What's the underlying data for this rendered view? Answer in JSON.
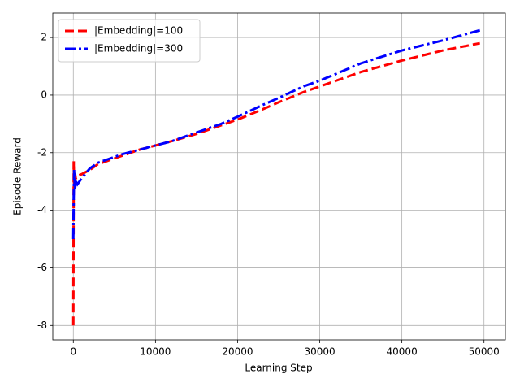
{
  "chart_data": {
    "type": "line",
    "x_label": "Learning Step",
    "y_label": "Episode Reward",
    "x": [
      0,
      50,
      100,
      200,
      300,
      500,
      1000,
      2000,
      3000,
      4000,
      6000,
      8000,
      10000,
      12000,
      15000,
      18000,
      20000,
      23000,
      25000,
      28000,
      30000,
      35000,
      40000,
      45000,
      49500
    ],
    "series": [
      {
        "name": "|Embedding|=100",
        "color": "#ff0000",
        "linestyle": "dashed",
        "values": [
          -8,
          -2.3,
          -3.3,
          -2.7,
          -2.9,
          -2.8,
          -2.75,
          -2.6,
          -2.4,
          -2.3,
          -2.1,
          -1.9,
          -1.75,
          -1.6,
          -1.35,
          -1.05,
          -0.85,
          -0.5,
          -0.25,
          0.1,
          0.3,
          0.8,
          1.2,
          1.55,
          1.8
        ]
      },
      {
        "name": "|Embedding|=300",
        "color": "#0000ff",
        "linestyle": "dashdot",
        "values": [
          -5,
          -3.5,
          -2.6,
          -3.3,
          -3.0,
          -3.1,
          -2.9,
          -2.55,
          -2.35,
          -2.25,
          -2.05,
          -1.9,
          -1.75,
          -1.6,
          -1.3,
          -1.0,
          -0.75,
          -0.35,
          -0.1,
          0.3,
          0.5,
          1.1,
          1.55,
          1.9,
          2.25
        ]
      }
    ],
    "xlim": [
      -2500,
      52600
    ],
    "ylim": [
      -8.5,
      2.85
    ],
    "xticks": [
      0,
      10000,
      20000,
      30000,
      40000,
      50000
    ],
    "yticks": [
      -8,
      -6,
      -4,
      -2,
      0,
      2
    ],
    "grid": true,
    "legend": "upper left"
  }
}
